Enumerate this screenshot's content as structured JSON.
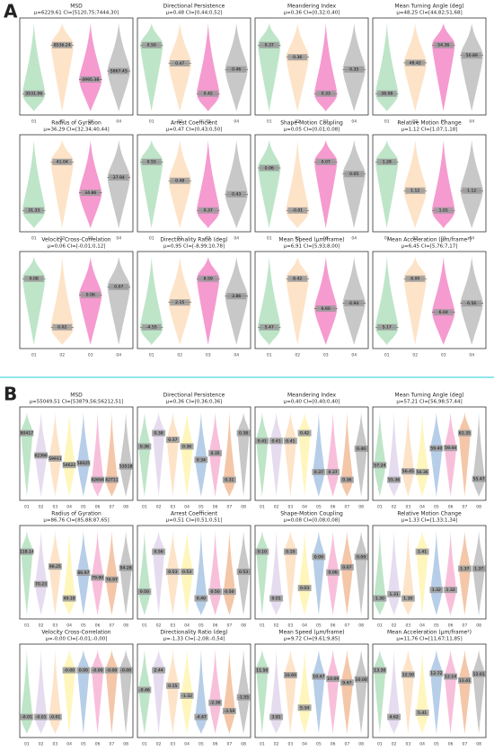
{
  "panel_labels": [
    "A",
    "B"
  ],
  "chart_data": [
    {
      "type": "violin",
      "title": "MSD",
      "subtitle": "μ=6229,61  CI=[5120,75;7444,30]",
      "categories": [
        "01",
        "02",
        "03",
        "04"
      ],
      "colors": [
        "#a8dcb5",
        "#fcd9b6",
        "#f27ac0",
        "#b5b5b5"
      ],
      "values": [
        3531.96,
        8536.24,
        4995.38,
        5867.45
      ],
      "value_labels": [
        "3531.96",
        "8536.24",
        "4995.38",
        "5867.45"
      ]
    },
    {
      "type": "violin",
      "title": "Directional Persistence",
      "subtitle": "μ=0,48  CI=[0,44;0,52]",
      "categories": [
        "01",
        "02",
        "03",
        "04"
      ],
      "colors": [
        "#a8dcb5",
        "#fcd9b6",
        "#f27ac0",
        "#b5b5b5"
      ],
      "values": [
        0.5,
        0.47,
        0.42,
        0.46
      ],
      "value_labels": [
        "0.50",
        "0.47",
        "0.42",
        "0.46"
      ]
    },
    {
      "type": "violin",
      "title": "Meandering Index",
      "subtitle": "μ=0,36  CI=[0,32;0,40]",
      "categories": [
        "01",
        "02",
        "03",
        "04"
      ],
      "colors": [
        "#a8dcb5",
        "#fcd9b6",
        "#f27ac0",
        "#b5b5b5"
      ],
      "values": [
        0.37,
        0.36,
        0.33,
        0.35
      ],
      "value_labels": [
        "0.37",
        "0.36",
        "0.33",
        "0.35"
      ]
    },
    {
      "type": "violin",
      "title": "Mean Turning Angle (deg)",
      "subtitle": "μ=48,25  CI=[44,82;51,68]",
      "categories": [
        "01",
        "02",
        "03",
        "04"
      ],
      "colors": [
        "#a8dcb5",
        "#fcd9b6",
        "#f27ac0",
        "#b5b5b5"
      ],
      "values": [
        38.08,
        48.42,
        54.36,
        50.89
      ],
      "value_labels": [
        "38.08",
        "48.42",
        "54.36",
        "50.89"
      ]
    },
    {
      "type": "violin",
      "title": "Radius of Gyration",
      "subtitle": "μ=36,29  CI=[32,34;40,44]",
      "categories": [
        "01",
        "02",
        "03",
        "04"
      ],
      "colors": [
        "#a8dcb5",
        "#fcd9b6",
        "#f27ac0",
        "#b5b5b5"
      ],
      "values": [
        31.33,
        41.04,
        34.86,
        37.94
      ],
      "value_labels": [
        "31.33",
        "41.04",
        "34.86",
        "37.94"
      ]
    },
    {
      "type": "violin",
      "title": "Arrest Coefficient",
      "subtitle": "μ=0,47  CI=[0,43;0,50]",
      "categories": [
        "01",
        "02",
        "03",
        "04"
      ],
      "colors": [
        "#a8dcb5",
        "#fcd9b6",
        "#f27ac0",
        "#b5b5b5"
      ],
      "values": [
        0.55,
        0.48,
        0.37,
        0.43
      ],
      "value_labels": [
        "0.55",
        "0.48",
        "0.37",
        "0.43"
      ]
    },
    {
      "type": "violin",
      "title": "Shape-Motion Coupling",
      "subtitle": "μ=0,05  CI=[0,01;0,08]",
      "categories": [
        "01",
        "02",
        "03",
        "04"
      ],
      "colors": [
        "#a8dcb5",
        "#fcd9b6",
        "#f27ac0",
        "#b5b5b5"
      ],
      "values": [
        0.06,
        -0.01,
        0.07,
        0.05
      ],
      "value_labels": [
        "0.06",
        "-0.01",
        "0.07",
        "0.05"
      ]
    },
    {
      "type": "violin",
      "title": "Relative Motion Change",
      "subtitle": "μ=1,12  CI=[1,07;1,18]",
      "categories": [
        "01",
        "02",
        "03",
        "04"
      ],
      "colors": [
        "#a8dcb5",
        "#fcd9b6",
        "#f27ac0",
        "#b5b5b5"
      ],
      "values": [
        1.28,
        1.12,
        1.01,
        1.12
      ],
      "value_labels": [
        "1.28",
        "1.12",
        "1.01",
        "1.12"
      ]
    },
    {
      "type": "violin",
      "title": "Velocity Cross-Correlation",
      "subtitle": "μ=0,06  CI=[-0,01;0,12]",
      "categories": [
        "01",
        "02",
        "03",
        "04"
      ],
      "colors": [
        "#a8dcb5",
        "#fcd9b6",
        "#f27ac0",
        "#b5b5b5"
      ],
      "values": [
        0.08,
        0.02,
        0.06,
        0.07
      ],
      "value_labels": [
        "0.08",
        "0.02",
        "0.06",
        "0.07"
      ]
    },
    {
      "type": "violin",
      "title": "Directionality Ratio (deg)",
      "subtitle": "μ=0,95  CI=[-8,99;10,78]",
      "categories": [
        "01",
        "02",
        "03",
        "04"
      ],
      "colors": [
        "#a8dcb5",
        "#fcd9b6",
        "#f27ac0",
        "#b5b5b5"
      ],
      "values": [
        -4.55,
        2.15,
        8.59,
        3.86
      ],
      "value_labels": [
        "-4.55",
        "2.15",
        "8.59",
        "3.86"
      ]
    },
    {
      "type": "violin",
      "title": "Mean Speed (μm/frame)",
      "subtitle": "μ=6,91  CI=[5,93;8,00]",
      "categories": [
        "01",
        "02",
        "03",
        "04"
      ],
      "colors": [
        "#a8dcb5",
        "#fcd9b6",
        "#f27ac0",
        "#b5b5b5"
      ],
      "values": [
        5.47,
        8.42,
        6.6,
        6.94
      ],
      "value_labels": [
        "5.47",
        "8.42",
        "6.60",
        "6.94"
      ]
    },
    {
      "type": "violin",
      "title": "Mean Acceleration (μm/frame²)",
      "subtitle": "μ=6,45  CI=[5,76;7,17]",
      "categories": [
        "01",
        "02",
        "03",
        "04"
      ],
      "colors": [
        "#a8dcb5",
        "#fcd9b6",
        "#f27ac0",
        "#b5b5b5"
      ],
      "values": [
        5.17,
        8.0,
        6.04,
        6.56
      ],
      "value_labels": [
        "5.17",
        "8.00",
        "6.04",
        "6.56"
      ]
    },
    {
      "type": "violin",
      "title": "MSD",
      "subtitle": "μ=55049,51  CI=[53879,56;56212,51]",
      "categories": [
        "01",
        "02",
        "03",
        "04",
        "05",
        "06",
        "07",
        "08"
      ],
      "colors": [
        "#a8dcb5",
        "#ddd0ea",
        "#fcd9b6",
        "#fdf3a6",
        "#9fbde0",
        "#f6a9cf",
        "#f0b48c",
        "#b5b5b5"
      ],
      "values": [
        80417,
        62366,
        59911,
        54622,
        56025,
        42694,
        42711,
        53518
      ],
      "value_labels": [
        "80417",
        "62366",
        "59911",
        "54622",
        "56025",
        "42694",
        "42711",
        "53518"
      ]
    },
    {
      "type": "violin",
      "title": "Directional Persistence",
      "subtitle": "μ=0,36  CI=[0,36;0,36]",
      "categories": [
        "01",
        "02",
        "03",
        "04",
        "05",
        "06",
        "07",
        "08"
      ],
      "colors": [
        "#a8dcb5",
        "#ddd0ea",
        "#fcd9b6",
        "#fdf3a6",
        "#9fbde0",
        "#f6a9cf",
        "#f0b48c",
        "#b5b5b5"
      ],
      "values": [
        0.36,
        0.38,
        0.37,
        0.36,
        0.34,
        0.35,
        0.31,
        0.38
      ],
      "value_labels": [
        "0.36",
        "0.38",
        "0.37",
        "0.36",
        "0.34",
        "0.35",
        "0.31",
        "0.38"
      ]
    },
    {
      "type": "violin",
      "title": "Meandering Index",
      "subtitle": "μ=0,40  CI=[0,40;0,40]",
      "categories": [
        "01",
        "02",
        "03",
        "04",
        "05",
        "06",
        "07",
        "08"
      ],
      "colors": [
        "#a8dcb5",
        "#ddd0ea",
        "#fcd9b6",
        "#fdf3a6",
        "#9fbde0",
        "#f6a9cf",
        "#f0b48c",
        "#b5b5b5"
      ],
      "values": [
        0.41,
        0.41,
        0.41,
        0.42,
        0.37,
        0.37,
        0.36,
        0.4
      ],
      "value_labels": [
        "0.41",
        "0.41",
        "0.41",
        "0.42",
        "0.37",
        "0.37",
        "0.36",
        "0.40"
      ]
    },
    {
      "type": "violin",
      "title": "Mean Turning Angle (deg)",
      "subtitle": "μ=57,21  CI=[56,98;57,44]",
      "categories": [
        "01",
        "02",
        "03",
        "04",
        "05",
        "06",
        "07",
        "08"
      ],
      "colors": [
        "#a8dcb5",
        "#ddd0ea",
        "#fcd9b6",
        "#fdf3a6",
        "#9fbde0",
        "#f6a9cf",
        "#f0b48c",
        "#b5b5b5"
      ],
      "values": [
        57.24,
        55.36,
        56.45,
        56.36,
        59.4,
        59.44,
        61.35,
        55.47
      ],
      "value_labels": [
        "57.24",
        "55.36",
        "56.45",
        "56.36",
        "59.40",
        "59.44",
        "61.35",
        "55.47"
      ]
    },
    {
      "type": "violin",
      "title": "Radius of Gyration",
      "subtitle": "μ=86,76  CI=[85,88;87,65]",
      "categories": [
        "01",
        "02",
        "03",
        "04",
        "05",
        "06",
        "07",
        "08"
      ],
      "colors": [
        "#a8dcb5",
        "#ddd0ea",
        "#fcd9b6",
        "#fdf3a6",
        "#9fbde0",
        "#f6a9cf",
        "#f0b48c",
        "#b5b5b5"
      ],
      "values": [
        118.14,
        70.23,
        96.25,
        49.18,
        86.97,
        79.9,
        76.97,
        94.28
      ],
      "value_labels": [
        "118.14",
        "70.23",
        "96.25",
        "49.18",
        "86.97",
        "79.90",
        "76.97",
        "94.28"
      ]
    },
    {
      "type": "violin",
      "title": "Arrest Coefficient",
      "subtitle": "μ=0,51  CI=[0,51;0,51]",
      "categories": [
        "01",
        "02",
        "03",
        "04",
        "05",
        "06",
        "07",
        "08"
      ],
      "colors": [
        "#a8dcb5",
        "#ddd0ea",
        "#fcd9b6",
        "#fdf3a6",
        "#9fbde0",
        "#f6a9cf",
        "#f0b48c",
        "#b5b5b5"
      ],
      "values": [
        0.5,
        0.56,
        0.53,
        0.53,
        0.49,
        0.5,
        0.5,
        0.53
      ],
      "value_labels": [
        "0.50",
        "0.56",
        "0.53",
        "0.53",
        "0.49",
        "0.50",
        "0.50",
        "0.53"
      ]
    },
    {
      "type": "violin",
      "title": "Shape-Motion Coupling",
      "subtitle": "μ=0,08  CI=[0,08;0,08]",
      "categories": [
        "01",
        "02",
        "03",
        "04",
        "05",
        "06",
        "07",
        "08"
      ],
      "colors": [
        "#a8dcb5",
        "#ddd0ea",
        "#fcd9b6",
        "#fdf3a6",
        "#9fbde0",
        "#f6a9cf",
        "#f0b48c",
        "#b5b5b5"
      ],
      "values": [
        0.1,
        0.01,
        0.1,
        0.03,
        0.09,
        0.06,
        0.07,
        0.09
      ],
      "value_labels": [
        "0.10",
        "0.01",
        "0.10",
        "0.03",
        "0.09",
        "0.06",
        "0.07",
        "0.09"
      ]
    },
    {
      "type": "violin",
      "title": "Relative Motion Change",
      "subtitle": "μ=1,33  CI=[1,33;1,34]",
      "categories": [
        "01",
        "02",
        "03",
        "04",
        "05",
        "06",
        "07",
        "08"
      ],
      "colors": [
        "#a8dcb5",
        "#ddd0ea",
        "#fcd9b6",
        "#fdf3a6",
        "#9fbde0",
        "#f6a9cf",
        "#f0b48c",
        "#b5b5b5"
      ],
      "values": [
        1.3,
        1.31,
        1.3,
        1.41,
        1.32,
        1.32,
        1.37,
        1.37
      ],
      "value_labels": [
        "1.30",
        "1.31",
        "1.30",
        "1.41",
        "1.32",
        "1.32",
        "1.37",
        "1.37"
      ]
    },
    {
      "type": "violin",
      "title": "Velocity Cross-Correlation",
      "subtitle": "μ=-0,00  CI=[-0,01;-0,00]",
      "categories": [
        "01",
        "02",
        "03",
        "04",
        "05",
        "06",
        "07",
        "08"
      ],
      "colors": [
        "#a8dcb5",
        "#ddd0ea",
        "#fcd9b6",
        "#fdf3a6",
        "#9fbde0",
        "#f6a9cf",
        "#f0b48c",
        "#b5b5b5"
      ],
      "values": [
        -0.01,
        -0.01,
        -0.01,
        -0.0,
        0.0,
        -0.0,
        -0.0,
        -0.0
      ],
      "value_labels": [
        "-0.01",
        "-0.01",
        "-0.01",
        "-0.00",
        "0.00",
        "-0.00",
        "-0.00",
        "-0.00"
      ]
    },
    {
      "type": "violin",
      "title": "Directionality Ratio (deg)",
      "subtitle": "μ=-1,33  CI=[-2,08;-0,54]",
      "categories": [
        "01",
        "02",
        "03",
        "04",
        "05",
        "06",
        "07",
        "08"
      ],
      "colors": [
        "#a8dcb5",
        "#ddd0ea",
        "#fcd9b6",
        "#fdf3a6",
        "#9fbde0",
        "#f6a9cf",
        "#f0b48c",
        "#b5b5b5"
      ],
      "values": [
        -0.46,
        2.44,
        0.15,
        -1.32,
        -4.47,
        -2.36,
        -3.59,
        -1.55
      ],
      "value_labels": [
        "-0.46",
        "2.44",
        "0.15",
        "-1.32",
        "-4.47",
        "-2.36",
        "-3.59",
        "-1.55"
      ]
    },
    {
      "type": "violin",
      "title": "Mean Speed (μm/frame)",
      "subtitle": "μ=9,72  CI=[9,61;9,85]",
      "categories": [
        "01",
        "02",
        "03",
        "04",
        "05",
        "06",
        "07",
        "08"
      ],
      "colors": [
        "#a8dcb5",
        "#ddd0ea",
        "#fcd9b6",
        "#fdf3a6",
        "#9fbde0",
        "#f6a9cf",
        "#f0b48c",
        "#b5b5b5"
      ],
      "values": [
        11.5,
        3.81,
        10.69,
        5.34,
        10.47,
        10.09,
        9.47,
        10.0
      ],
      "value_labels": [
        "11.50",
        "3.81",
        "10.69",
        "5.34",
        "10.47",
        "10.09",
        "9.47",
        "10.00"
      ]
    },
    {
      "type": "violin",
      "title": "Mean Acceleration (μm/frame²)",
      "subtitle": "μ=11,76  CI=[11,67;11,85]",
      "categories": [
        "01",
        "02",
        "03",
        "04",
        "05",
        "06",
        "07",
        "08"
      ],
      "colors": [
        "#a8dcb5",
        "#ddd0ea",
        "#fcd9b6",
        "#fdf3a6",
        "#9fbde0",
        "#f6a9cf",
        "#f0b48c",
        "#b5b5b5"
      ],
      "values": [
        13.3,
        4.62,
        12.5,
        5.41,
        12.72,
        12.14,
        11.41,
        12.61
      ],
      "value_labels": [
        "13.30",
        "4.62",
        "12.50",
        "5.41",
        "12.72",
        "12.14",
        "11.41",
        "12.61"
      ]
    }
  ]
}
